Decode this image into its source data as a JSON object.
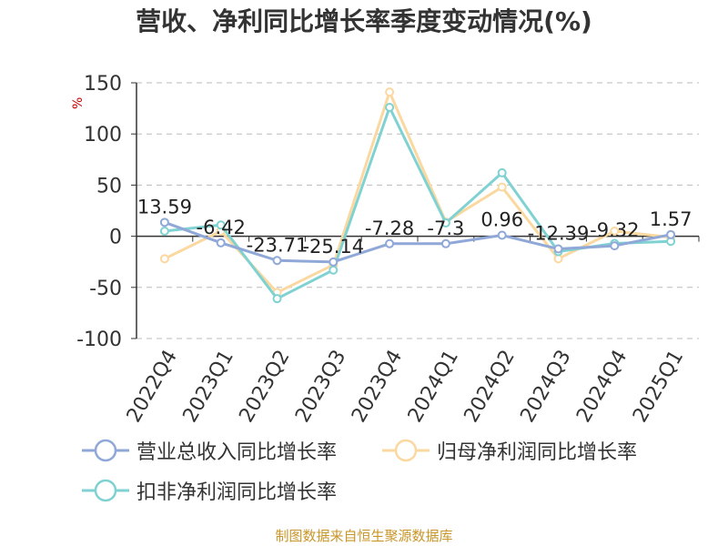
{
  "chart_data": {
    "type": "line",
    "title": "营收、净利同比增长率季度变动情况(%)",
    "ylabel": "%",
    "xlabel": "",
    "ylim": [
      -100,
      150
    ],
    "yticks": [
      150,
      100,
      50,
      0,
      -50,
      -100
    ],
    "grid": true,
    "legend_position": "bottom",
    "categories": [
      "2022Q4",
      "2023Q1",
      "2023Q2",
      "2023Q3",
      "2023Q4",
      "2024Q1",
      "2024Q2",
      "2024Q3",
      "2024Q4",
      "2025Q1"
    ],
    "series": [
      {
        "name": "营业总收入同比增长率",
        "color": "#8fa8d8",
        "values": [
          13.59,
          -6.42,
          -23.71,
          -25.14,
          -7.28,
          -7.3,
          0.96,
          -12.39,
          -9.32,
          1.57
        ],
        "labels": [
          "13.59",
          "-6.42",
          "-23.71",
          "-25.14",
          "-7.28",
          "-7.3",
          "0.96",
          "-12.39",
          "-9.32",
          "1.57"
        ]
      },
      {
        "name": "归母净利润同比增长率",
        "color": "#fad8a0",
        "values": [
          -22,
          5,
          -55,
          -28,
          141,
          14,
          48,
          -22,
          5,
          -1
        ]
      },
      {
        "name": "扣非净利润同比增长率",
        "color": "#80d2d2",
        "values": [
          5,
          11,
          -61,
          -33,
          126,
          13,
          62,
          -15,
          -7,
          -5
        ]
      }
    ]
  },
  "source": "制图数据来自恒生聚源数据库"
}
